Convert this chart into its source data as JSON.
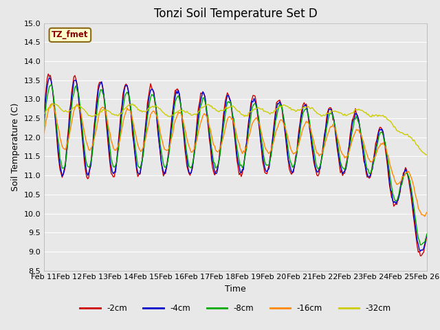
{
  "title": "Tonzi Soil Temperature Set D",
  "xlabel": "Time",
  "ylabel": "Soil Temperature (C)",
  "ylim": [
    8.5,
    15.0
  ],
  "yticks": [
    8.5,
    9.0,
    9.5,
    10.0,
    10.5,
    11.0,
    11.5,
    12.0,
    12.5,
    13.0,
    13.5,
    14.0,
    14.5,
    15.0
  ],
  "xtick_labels": [
    "Feb 11",
    "Feb 12",
    "Feb 13",
    "Feb 14",
    "Feb 15",
    "Feb 16",
    "Feb 17",
    "Feb 18",
    "Feb 19",
    "Feb 20",
    "Feb 21",
    "Feb 22",
    "Feb 23",
    "Feb 24",
    "Feb 25",
    "Feb 26"
  ],
  "legend_label": "TZ_fmet",
  "series_colors": [
    "#cc0000",
    "#0000cc",
    "#00aa00",
    "#ff8800",
    "#cccc00"
  ],
  "series_names": [
    "-2cm",
    "-4cm",
    "-8cm",
    "-16cm",
    "-32cm"
  ],
  "background_color": "#e8e8e8",
  "grid_color": "#ffffff",
  "title_fontsize": 12,
  "axis_fontsize": 9,
  "tick_fontsize": 8
}
